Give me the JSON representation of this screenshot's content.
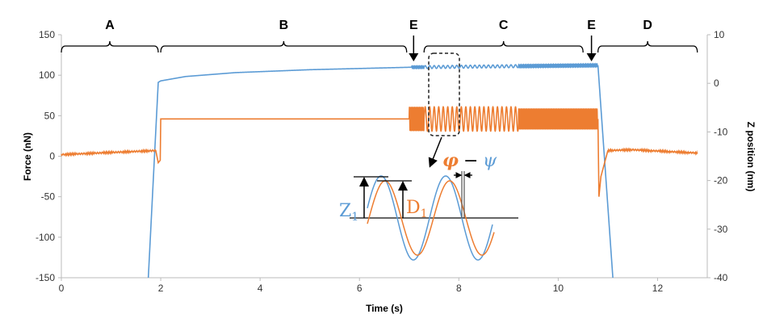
{
  "chart_data": {
    "type": "line",
    "xlabel": "Time (s)",
    "ylabel": "Force (nN)",
    "y2label": "Z position (nm)",
    "xlim": [
      0,
      13
    ],
    "ylim": [
      -150,
      150
    ],
    "y2lim": [
      -40,
      10
    ],
    "xticks": [
      "0",
      "2",
      "4",
      "6",
      "8",
      "10",
      "12"
    ],
    "yticks": [
      "150",
      "100",
      "50",
      "0",
      "-50",
      "-100",
      "-150"
    ],
    "y2ticks": [
      "10",
      "0",
      "-10",
      "-20",
      "-30",
      "-40"
    ],
    "grid": false,
    "colors": {
      "force": "#ED7D31",
      "z": "#5B9BD5"
    },
    "series": [
      {
        "axis": "right",
        "color": "#5B9BD5",
        "points": [
          [
            1.75,
            -40
          ],
          [
            1.95,
            0.2
          ],
          [
            2.0,
            0.5
          ],
          [
            2.5,
            1.4
          ],
          [
            3.5,
            2.2
          ],
          [
            5,
            2.8
          ],
          [
            7.0,
            3.3
          ],
          [
            10.8,
            3.7
          ],
          [
            11.1,
            -40
          ]
        ],
        "oscillations": [
          {
            "t0": 7.05,
            "t1": 7.3,
            "amplitude": 0.25,
            "freq": 40
          },
          {
            "t0": 7.3,
            "t1": 9.2,
            "amplitude": 0.3,
            "freq": 11
          },
          {
            "t0": 9.2,
            "t1": 10.8,
            "amplitude": 0.3,
            "freq": 40
          }
        ]
      },
      {
        "axis": "left",
        "color": "#ED7D31",
        "points": [
          [
            0,
            2
          ],
          [
            1.9,
            7
          ],
          [
            1.95,
            -8
          ],
          [
            1.99,
            -5
          ],
          [
            2.0,
            46
          ],
          [
            7.0,
            46
          ],
          [
            10.8,
            46
          ],
          [
            10.82,
            -50
          ],
          [
            10.86,
            -25
          ],
          [
            11.0,
            7
          ],
          [
            11.5,
            8
          ],
          [
            12.8,
            4
          ]
        ],
        "oscillations": [
          {
            "t0": 7.0,
            "t1": 7.3,
            "amplitude": 15,
            "freq": 40
          },
          {
            "t0": 7.3,
            "t1": 9.2,
            "amplitude": 15,
            "freq": 11
          },
          {
            "t0": 9.2,
            "t1": 10.8,
            "amplitude": 13,
            "freq": 40
          }
        ]
      }
    ],
    "regions": [
      {
        "label": "A",
        "t0": 0,
        "t1": 1.95
      },
      {
        "label": "B",
        "t0": 2.0,
        "t1": 6.95
      },
      {
        "label": "C",
        "t0": 7.3,
        "t1": 10.5
      },
      {
        "label": "D",
        "t0": 10.8,
        "t1": 12.8
      }
    ],
    "events": [
      {
        "label": "E",
        "t": 7.09
      },
      {
        "label": "E",
        "t": 10.67
      }
    ],
    "inset": {
      "z_label": "Z",
      "z_sub": "1",
      "d_label": "D",
      "d_sub": "1",
      "phase_phi": "φ",
      "phase_minus": "−",
      "phase_psi": "ψ"
    }
  }
}
